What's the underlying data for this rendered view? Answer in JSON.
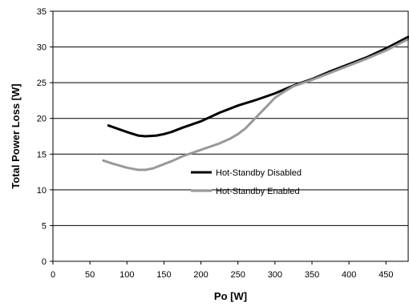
{
  "chart_data": {
    "type": "line",
    "title": "",
    "xlabel": "Po [W]",
    "ylabel": "Total Power Loss [W]",
    "xlim": [
      0,
      480
    ],
    "ylim": [
      0,
      35
    ],
    "xticks": [
      0,
      50,
      100,
      150,
      200,
      250,
      300,
      350,
      400,
      450
    ],
    "yticks": [
      0,
      5,
      10,
      15,
      20,
      25,
      30,
      35
    ],
    "grid": "horizontal",
    "legend_position": "center-right",
    "series": [
      {
        "name": "Hot-Standby Disabled",
        "color": "#000000",
        "x": [
          75,
          100,
          115,
          125,
          140,
          150,
          160,
          175,
          200,
          225,
          250,
          275,
          300,
          325,
          350,
          375,
          400,
          425,
          450,
          480
        ],
        "y": [
          19.0,
          18.1,
          17.6,
          17.5,
          17.6,
          17.8,
          18.1,
          18.7,
          19.6,
          20.8,
          21.8,
          22.6,
          23.5,
          24.6,
          25.5,
          26.6,
          27.6,
          28.6,
          29.8,
          31.4
        ]
      },
      {
        "name": "Hot-Standby Enabled",
        "color": "#999999",
        "x": [
          68,
          80,
          100,
          115,
          125,
          135,
          150,
          160,
          175,
          200,
          225,
          240,
          250,
          260,
          275,
          290,
          300,
          315,
          325,
          350,
          375,
          400,
          425,
          450,
          480
        ],
        "y": [
          14.1,
          13.7,
          13.1,
          12.8,
          12.8,
          13.0,
          13.6,
          14.0,
          14.7,
          15.6,
          16.5,
          17.2,
          17.8,
          18.6,
          20.2,
          21.8,
          22.9,
          23.9,
          24.5,
          25.4,
          26.4,
          27.4,
          28.4,
          29.5,
          31.1
        ]
      }
    ]
  }
}
